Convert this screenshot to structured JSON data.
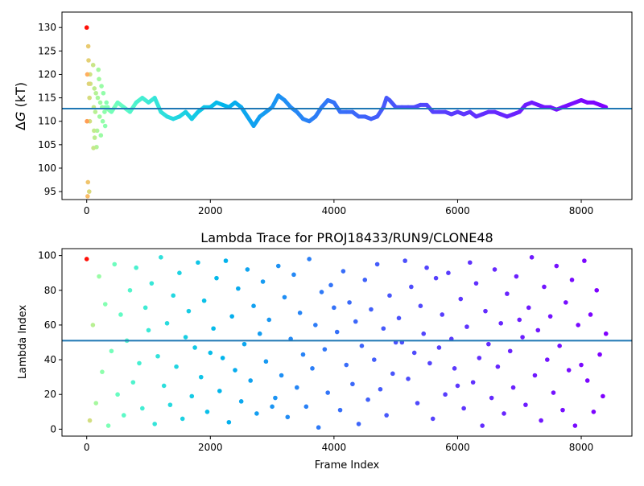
{
  "chart_data": [
    {
      "type": "scatter",
      "title": "",
      "xlabel": "",
      "ylabel_symbol": "Δ",
      "ylabel_var": "G",
      "ylabel_unit": " (kT)",
      "xlim": [
        -400,
        8820
      ],
      "ylim": [
        93.3,
        133.3
      ],
      "xticks": [
        0,
        2000,
        4000,
        6000,
        8000
      ],
      "yticks": [
        95,
        100,
        105,
        110,
        115,
        120,
        125,
        130
      ],
      "colormap": "rainbow",
      "hline": 112.7,
      "hline_color": "#1f77b4",
      "early_points": [
        [
          0,
          130
        ],
        [
          5,
          110
        ],
        [
          10,
          120
        ],
        [
          15,
          94
        ],
        [
          20,
          97
        ],
        [
          25,
          126
        ],
        [
          30,
          123
        ],
        [
          35,
          118
        ],
        [
          40,
          95
        ],
        [
          45,
          115
        ],
        [
          50,
          110
        ],
        [
          55,
          120
        ],
        [
          60,
          118
        ],
        [
          65,
          122
        ],
        [
          70,
          104.3
        ],
        [
          75,
          113
        ],
        [
          80,
          108
        ],
        [
          85,
          117
        ],
        [
          90,
          106.5
        ],
        [
          100,
          112
        ],
        [
          110,
          116
        ],
        [
          120,
          104.5
        ],
        [
          130,
          108
        ],
        [
          140,
          115
        ],
        [
          150,
          121
        ],
        [
          160,
          119
        ],
        [
          170,
          111
        ],
        [
          180,
          114
        ],
        [
          190,
          107
        ],
        [
          200,
          117.5
        ],
        [
          210,
          113
        ],
        [
          220,
          110
        ],
        [
          230,
          116
        ],
        [
          250,
          112
        ],
        [
          260,
          109
        ],
        [
          280,
          114
        ],
        [
          300,
          113
        ]
      ],
      "trace_x": [
        300,
        400,
        500,
        600,
        700,
        800,
        900,
        1000,
        1100,
        1200,
        1300,
        1400,
        1500,
        1600,
        1700,
        1800,
        1900,
        2000,
        2100,
        2200,
        2300,
        2400,
        2500,
        2600,
        2700,
        2800,
        2900,
        3000,
        3100,
        3200,
        3300,
        3400,
        3500,
        3600,
        3700,
        3800,
        3900,
        4000,
        4100,
        4200,
        4300,
        4400,
        4500,
        4600,
        4700,
        4800,
        4850,
        4900,
        5000,
        5100,
        5200,
        5300,
        5400,
        5500,
        5600,
        5700,
        5800,
        5900,
        6000,
        6100,
        6200,
        6300,
        6400,
        6500,
        6600,
        6700,
        6800,
        6900,
        7000,
        7100,
        7200,
        7300,
        7400,
        7500,
        7600,
        7700,
        7800,
        7900,
        8000,
        8100,
        8200,
        8300,
        8400
      ],
      "trace_y": [
        113,
        112,
        114,
        113,
        112,
        114,
        115,
        114,
        115,
        112,
        111,
        110.5,
        111,
        112,
        110.5,
        112,
        113,
        113,
        114,
        113.5,
        113,
        114,
        113,
        111,
        109,
        111,
        112,
        113,
        115.5,
        114.5,
        113,
        112,
        110.5,
        110,
        111,
        113,
        114.5,
        114,
        112,
        112,
        112,
        111,
        111,
        110.5,
        111,
        113,
        115,
        114.5,
        113,
        113,
        113,
        113,
        113.5,
        113.5,
        112,
        112,
        112,
        111.5,
        112,
        111.5,
        112,
        111,
        111.5,
        112,
        112,
        111.5,
        111,
        111.5,
        112,
        113.5,
        114,
        113.5,
        113,
        113,
        112.5,
        113,
        113.5,
        114,
        114.5,
        114,
        114,
        113.5,
        113
      ]
    },
    {
      "type": "scatter",
      "title": "Lambda Trace for PROJ18433/RUN9/CLONE48",
      "xlabel": "Frame Index",
      "ylabel": "Lambda Index",
      "xlim": [
        -400,
        8820
      ],
      "ylim": [
        -4,
        104
      ],
      "xticks": [
        0,
        2000,
        4000,
        6000,
        8000
      ],
      "yticks": [
        0,
        20,
        40,
        60,
        80,
        100
      ],
      "colormap": "rainbow",
      "hline": 51,
      "hline_color": "#1f77b4",
      "x": [
        0,
        50,
        100,
        150,
        200,
        250,
        300,
        350,
        400,
        450,
        500,
        550,
        600,
        650,
        700,
        750,
        800,
        850,
        900,
        950,
        1000,
        1050,
        1100,
        1150,
        1200,
        1250,
        1300,
        1350,
        1400,
        1450,
        1500,
        1550,
        1600,
        1650,
        1700,
        1750,
        1800,
        1850,
        1900,
        1950,
        2000,
        2050,
        2100,
        2150,
        2200,
        2250,
        2300,
        2350,
        2400,
        2450,
        2500,
        2550,
        2600,
        2650,
        2700,
        2750,
        2800,
        2850,
        2900,
        2950,
        3000,
        3050,
        3100,
        3150,
        3200,
        3250,
        3300,
        3350,
        3400,
        3450,
        3500,
        3550,
        3600,
        3650,
        3700,
        3750,
        3800,
        3850,
        3900,
        3950,
        4000,
        4050,
        4100,
        4150,
        4200,
        4250,
        4300,
        4350,
        4400,
        4450,
        4500,
        4550,
        4600,
        4650,
        4700,
        4750,
        4800,
        4850,
        4900,
        4950,
        5000,
        5050,
        5100,
        5150,
        5200,
        5250,
        5300,
        5350,
        5400,
        5450,
        5500,
        5550,
        5600,
        5650,
        5700,
        5750,
        5800,
        5850,
        5900,
        5950,
        6000,
        6050,
        6100,
        6150,
        6200,
        6250,
        6300,
        6350,
        6400,
        6450,
        6500,
        6550,
        6600,
        6650,
        6700,
        6750,
        6800,
        6850,
        6900,
        6950,
        7000,
        7050,
        7100,
        7150,
        7200,
        7250,
        7300,
        7350,
        7400,
        7450,
        7500,
        7550,
        7600,
        7650,
        7700,
        7750,
        7800,
        7850,
        7900,
        7950,
        8000,
        8050,
        8100,
        8150,
        8200,
        8250,
        8300,
        8350,
        8400
      ],
      "y": [
        98,
        5,
        60,
        15,
        88,
        33,
        72,
        2,
        45,
        95,
        20,
        66,
        8,
        51,
        80,
        27,
        93,
        38,
        12,
        70,
        57,
        84,
        3,
        42,
        99,
        25,
        61,
        14,
        77,
        36,
        90,
        6,
        53,
        68,
        19,
        47,
        96,
        30,
        74,
        10,
        44,
        58,
        87,
        22,
        41,
        97,
        4,
        65,
        34,
        81,
        16,
        49,
        92,
        28,
        71,
        9,
        55,
        85,
        39,
        63,
        13,
        18,
        94,
        31,
        76,
        7,
        52,
        89,
        24,
        67,
        43,
        13,
        98,
        35,
        60,
        1,
        79,
        46,
        21,
        83,
        70,
        56,
        11,
        91,
        37,
        73,
        26,
        62,
        3,
        48,
        86,
        17,
        69,
        40,
        95,
        23,
        58,
        8,
        77,
        32,
        50,
        64,
        50,
        97,
        29,
        82,
        44,
        15,
        71,
        55,
        93,
        38,
        6,
        87,
        47,
        66,
        20,
        90,
        52,
        35,
        25,
        75,
        12,
        59,
        96,
        27,
        84,
        41,
        2,
        68,
        49,
        18,
        92,
        36,
        61,
        9,
        78,
        45,
        24,
        88,
        63,
        53,
        14,
        70,
        99,
        31,
        57,
        5,
        82,
        40,
        65,
        21,
        94,
        48,
        11,
        73,
        34,
        86,
        2,
        60,
        37,
        97,
        28,
        66,
        10,
        80,
        43,
        19,
        55
      ]
    }
  ]
}
